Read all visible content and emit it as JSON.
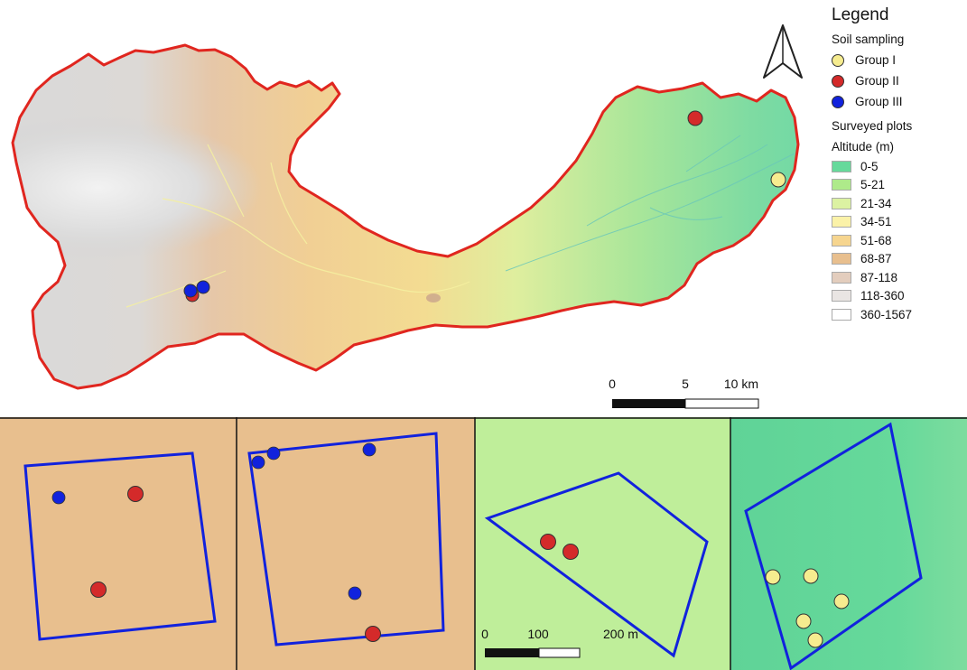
{
  "legend": {
    "title": "Legend",
    "soil_sampling_title": "Soil sampling",
    "groups": [
      {
        "label": "Group I",
        "color": "#f6ec8f"
      },
      {
        "label": "Group II",
        "color": "#d42a2a"
      },
      {
        "label": "Group III",
        "color": "#1122dd"
      }
    ],
    "surveyed_plots_title": "Surveyed plots",
    "altitude_title": "Altitude (m)",
    "altitude_classes": [
      {
        "label": "0-5",
        "color": "#66d99b"
      },
      {
        "label": "5-21",
        "color": "#aeea8a"
      },
      {
        "label": "21-34",
        "color": "#dcf2a2"
      },
      {
        "label": "34-51",
        "color": "#fbf2a8"
      },
      {
        "label": "51-68",
        "color": "#f6d58f"
      },
      {
        "label": "68-87",
        "color": "#e8bf8e"
      },
      {
        "label": "87-118",
        "color": "#e3cdbd"
      },
      {
        "label": "118-360",
        "color": "#e9e5e3"
      },
      {
        "label": "360-1567",
        "color": "#ffffff"
      }
    ]
  },
  "main_map": {
    "boundary_color": "#e0261f",
    "scale_labels": [
      "0",
      "5",
      "10 km"
    ]
  },
  "inset_panels": [
    {
      "background": "#e8bf8e"
    },
    {
      "background": "#e8bf8e"
    },
    {
      "background": "#bfee9a",
      "scale_labels": [
        "0",
        "100",
        "200 m"
      ]
    },
    {
      "background": "#66d99b"
    }
  ],
  "colors": {
    "plot_outline": "#1122dd",
    "panel_border": "#111111"
  }
}
